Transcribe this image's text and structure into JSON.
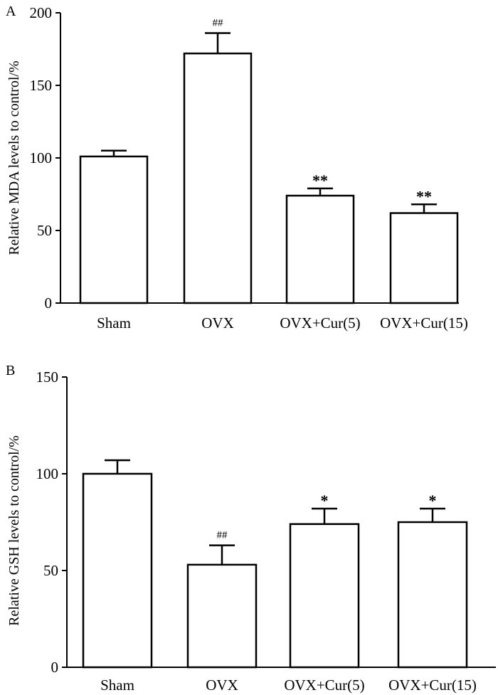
{
  "chart_data": [
    {
      "type": "bar",
      "panel_label": "A",
      "title": "",
      "xlabel": "",
      "ylabel": "Relative MDA levels to control/%",
      "ylim": [
        0,
        200
      ],
      "yticks": [
        0,
        50,
        100,
        150,
        200
      ],
      "categories": [
        "Sham",
        "OVX",
        "OVX+Cur(5)",
        "OVX+Cur(15)"
      ],
      "values": [
        101,
        172,
        74,
        62
      ],
      "errors": [
        4,
        14,
        5,
        6
      ],
      "annotations": [
        "",
        "##",
        "**",
        "**"
      ],
      "grid": false
    },
    {
      "type": "bar",
      "panel_label": "B",
      "title": "",
      "xlabel": "",
      "ylabel": "Relative GSH levels to control/%",
      "ylim": [
        0,
        150
      ],
      "yticks": [
        0,
        50,
        100,
        150
      ],
      "categories": [
        "Sham",
        "OVX",
        "OVX+Cur(5)",
        "OVX+Cur(15)"
      ],
      "values": [
        100,
        53,
        74,
        75
      ],
      "errors": [
        7,
        10,
        8,
        7
      ],
      "annotations": [
        "",
        "##",
        "*",
        "*"
      ],
      "grid": false
    }
  ]
}
